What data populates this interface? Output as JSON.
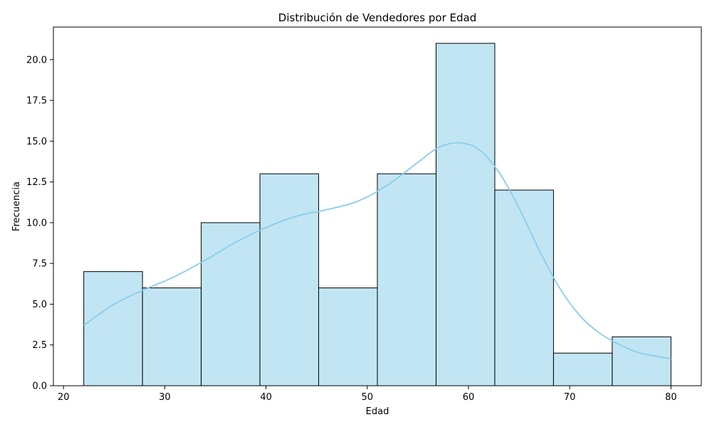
{
  "chart_data": {
    "type": "histogram",
    "title": "Distribución de Vendedores por Edad",
    "xlabel": "Edad",
    "ylabel": "Frecuencia",
    "xlim": [
      19,
      83
    ],
    "ylim": [
      0,
      22
    ],
    "xticks": [
      20,
      30,
      40,
      50,
      60,
      70,
      80
    ],
    "yticks": [
      0.0,
      2.5,
      5.0,
      7.5,
      10.0,
      12.5,
      15.0,
      17.5,
      20.0
    ],
    "bins": [
      {
        "start": 22.0,
        "end": 27.8,
        "count": 7
      },
      {
        "start": 27.8,
        "end": 33.6,
        "count": 6
      },
      {
        "start": 33.6,
        "end": 39.4,
        "count": 10
      },
      {
        "start": 39.4,
        "end": 45.2,
        "count": 13
      },
      {
        "start": 45.2,
        "end": 51.0,
        "count": 6
      },
      {
        "start": 51.0,
        "end": 56.8,
        "count": 13
      },
      {
        "start": 56.8,
        "end": 62.6,
        "count": 21
      },
      {
        "start": 62.6,
        "end": 68.4,
        "count": 12
      },
      {
        "start": 68.4,
        "end": 74.2,
        "count": 2
      },
      {
        "start": 74.2,
        "end": 80.0,
        "count": 3
      }
    ],
    "kde": {
      "x": [
        22,
        25,
        28,
        31,
        34,
        37,
        40,
        43,
        46,
        49,
        52,
        55,
        57,
        59,
        61,
        63,
        65,
        67,
        69,
        71,
        73,
        75,
        77,
        80
      ],
      "y": [
        3.7,
        5.0,
        5.9,
        6.7,
        7.7,
        8.8,
        9.7,
        10.4,
        10.8,
        11.3,
        12.3,
        13.7,
        14.6,
        14.9,
        14.5,
        13.1,
        10.9,
        8.3,
        6.0,
        4.3,
        3.2,
        2.5,
        2.0,
        1.65
      ]
    },
    "grid": false,
    "colors": {
      "bar_fill": "#c2e5f4",
      "bar_edge": "#000000",
      "kde_line": "#87ceeb"
    }
  }
}
